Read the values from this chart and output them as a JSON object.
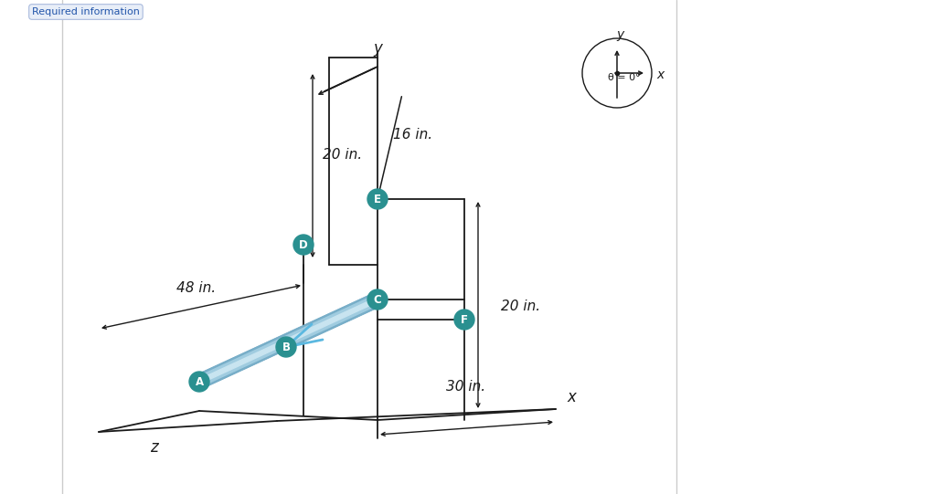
{
  "node_color": "#2a9090",
  "node_edge": "#1a6060",
  "tube_hi": "#c8e4f0",
  "tube_mid": "#a0cce0",
  "tube_lo": "#78aec8",
  "black": "#1a1a1a",
  "blue_arrow": "#5bb8e0",
  "labels": [
    "A",
    "B",
    "C",
    "D",
    "E",
    "F"
  ],
  "dim_labels": {
    "20in_y": "20 in.",
    "16in": "16 in.",
    "48in": "48 in.",
    "20in_x": "20 in.",
    "30in": "30 in."
  },
  "axis_x": "x",
  "axis_y": "y",
  "axis_z": "z",
  "theta": "θ = 0°",
  "req_info": "Required information",
  "bg": "#ffffff"
}
